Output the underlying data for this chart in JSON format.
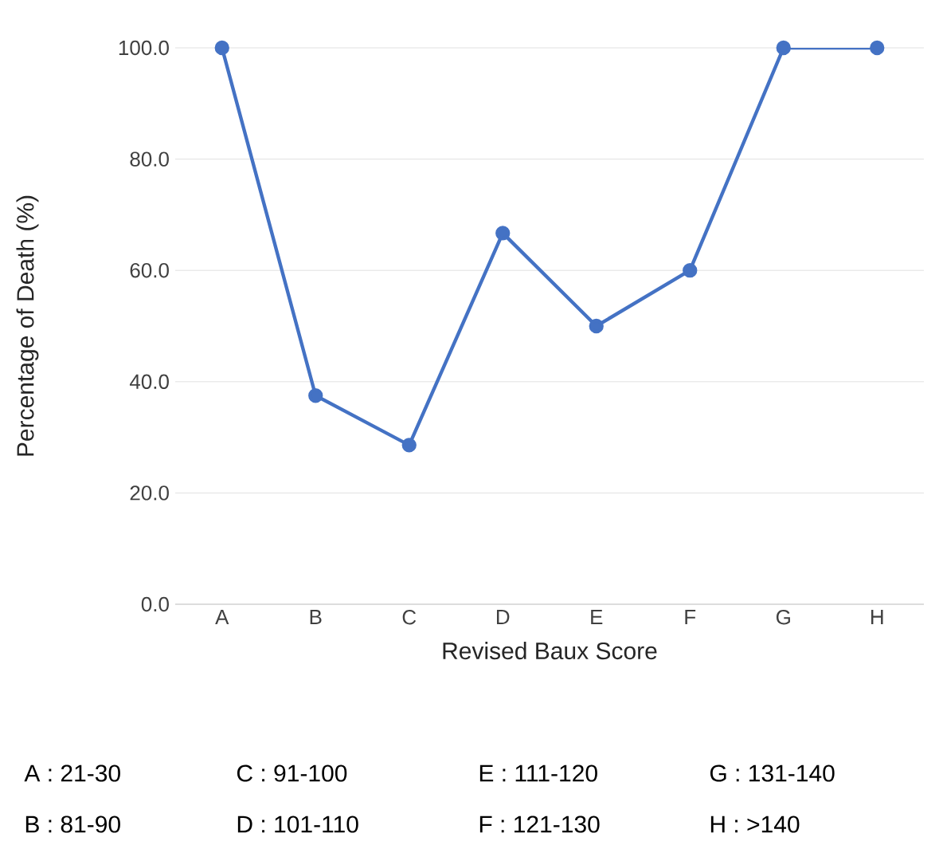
{
  "chart_data": {
    "type": "line",
    "xlabel": "Revised Baux Score",
    "ylabel": "Percentage of Death (%)",
    "categories": [
      "A",
      "B",
      "C",
      "D",
      "E",
      "F",
      "G",
      "H"
    ],
    "values": [
      100,
      37.5,
      28.6,
      66.7,
      50,
      60,
      100,
      100
    ],
    "color": "#4472c4",
    "marker": "circle",
    "grid": "y",
    "ylim": [
      0,
      100
    ],
    "yticks": [
      {
        "value": 0,
        "label": "0.0"
      },
      {
        "value": 20,
        "label": "20.0"
      },
      {
        "value": 40,
        "label": "40.0"
      },
      {
        "value": 60,
        "label": "60.0"
      },
      {
        "value": 80,
        "label": "80.0"
      },
      {
        "value": 100,
        "label": "100.0"
      }
    ],
    "annotations": [
      "A : 21-30",
      "C : 91-100",
      "E : 111-120",
      "G : 131-140",
      "B : 81-90",
      "D : 101-110",
      "F : 121-130",
      "H : >140"
    ]
  }
}
